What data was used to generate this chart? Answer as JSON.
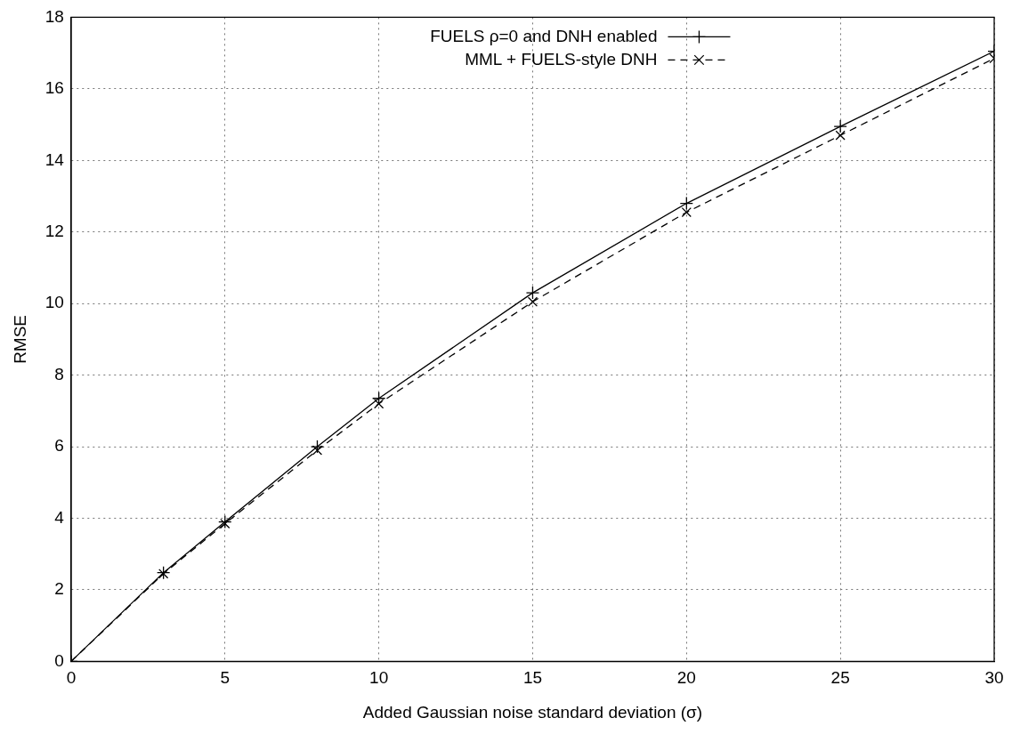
{
  "chart_data": {
    "type": "line",
    "xlabel": "Added Gaussian noise standard deviation (σ)",
    "ylabel": "RMSE",
    "x": [
      0,
      3,
      5,
      8,
      10,
      15,
      20,
      25,
      30
    ],
    "series": [
      {
        "name": "FUELS ρ=0 and DNH enabled",
        "color": "#000000",
        "marker": "plus",
        "line_style": "solid",
        "values": [
          0,
          2.48,
          3.9,
          6.0,
          7.35,
          10.3,
          12.8,
          14.95,
          17.05
        ]
      },
      {
        "name": "MML + FUELS-style DNH",
        "color": "#000000",
        "marker": "cross",
        "line_style": "dashed",
        "values": [
          0,
          2.45,
          3.85,
          5.9,
          7.2,
          10.05,
          12.55,
          14.7,
          16.85
        ]
      }
    ],
    "xlim": [
      0,
      30
    ],
    "xticks": [
      0,
      5,
      10,
      15,
      20,
      25,
      30
    ],
    "ylim": [
      0,
      18
    ],
    "yticks": [
      0,
      2,
      4,
      6,
      8,
      10,
      12,
      14,
      16,
      18
    ],
    "grid": true,
    "legend": "top"
  }
}
